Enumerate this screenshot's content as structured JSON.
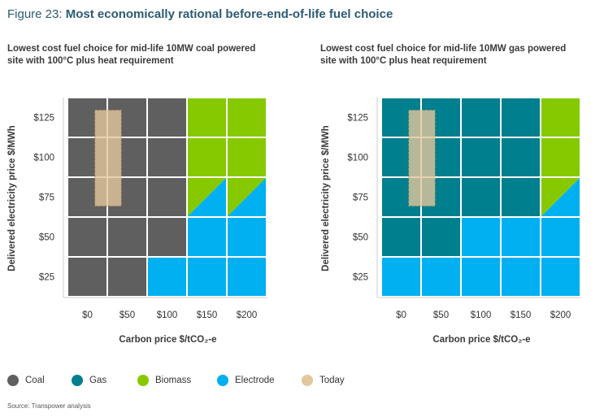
{
  "figure": {
    "number": "Figure 23: ",
    "title": "Most economically rational before-end-of-life fuel choice"
  },
  "legend": [
    {
      "label": "Coal",
      "color": "#5f5f5f"
    },
    {
      "label": "Gas",
      "color": "#007f8e"
    },
    {
      "label": "Biomass",
      "color": "#86c900"
    },
    {
      "label": "Electrode",
      "color": "#00b0f0"
    },
    {
      "label": "Today",
      "color": "#e3c79c"
    }
  ],
  "colors": {
    "Coal": "#5f5f5f",
    "Gas": "#007f8e",
    "Biomass": "#86c900",
    "Electrode": "#00b0f0",
    "Today": "#e3c79c"
  },
  "source": "Source: Transpower analysis",
  "chart_data": [
    {
      "type": "heatmap",
      "subtitle_line1": "Lowest cost fuel choice for mid-life 10MW coal powered",
      "subtitle_line2": "site with 100°C plus heat requirement",
      "xlabel": "Carbon price $/tCO₂-e",
      "ylabel": "Delivered electricity price $/MWh",
      "x_ticks": [
        "$0",
        "$50",
        "$100",
        "$150",
        "$200"
      ],
      "y_ticks": [
        "$125",
        "$100",
        "$75",
        "$50",
        "$25"
      ],
      "grid_rows_top_to_bottom": [
        [
          "Coal",
          "Coal",
          "Coal",
          "Biomass",
          "Biomass"
        ],
        [
          "Coal",
          "Coal",
          "Coal",
          "Biomass",
          "Biomass"
        ],
        [
          "Coal",
          "Coal",
          "Coal",
          "Biomass/Electrode",
          "Biomass/Electrode"
        ],
        [
          "Coal",
          "Coal",
          "Coal",
          "Electrode",
          "Electrode"
        ],
        [
          "Coal",
          "Coal",
          "Electrode",
          "Electrode",
          "Electrode"
        ]
      ],
      "today": {
        "carbon_price": 25,
        "electricity_price_range": [
          70,
          130
        ]
      }
    },
    {
      "type": "heatmap",
      "subtitle_line1": "Lowest cost fuel choice for mid-life 10MW gas powered",
      "subtitle_line2": "site with 100°C plus heat requirement",
      "xlabel": "Carbon price $/tCO₂-e",
      "ylabel": "Delivered electricity price $/MWh",
      "x_ticks": [
        "$0",
        "$50",
        "$100",
        "$150",
        "$200"
      ],
      "y_ticks": [
        "$125",
        "$100",
        "$75",
        "$50",
        "$25"
      ],
      "grid_rows_top_to_bottom": [
        [
          "Gas",
          "Gas",
          "Gas",
          "Gas",
          "Biomass"
        ],
        [
          "Gas",
          "Gas",
          "Gas",
          "Gas",
          "Biomass"
        ],
        [
          "Gas",
          "Gas",
          "Gas",
          "Gas",
          "Biomass/Electrode"
        ],
        [
          "Gas",
          "Gas",
          "Electrode",
          "Electrode",
          "Electrode"
        ],
        [
          "Electrode",
          "Electrode",
          "Electrode",
          "Electrode",
          "Electrode"
        ]
      ],
      "today": {
        "carbon_price": 25,
        "electricity_price_range": [
          70,
          130
        ]
      }
    }
  ]
}
